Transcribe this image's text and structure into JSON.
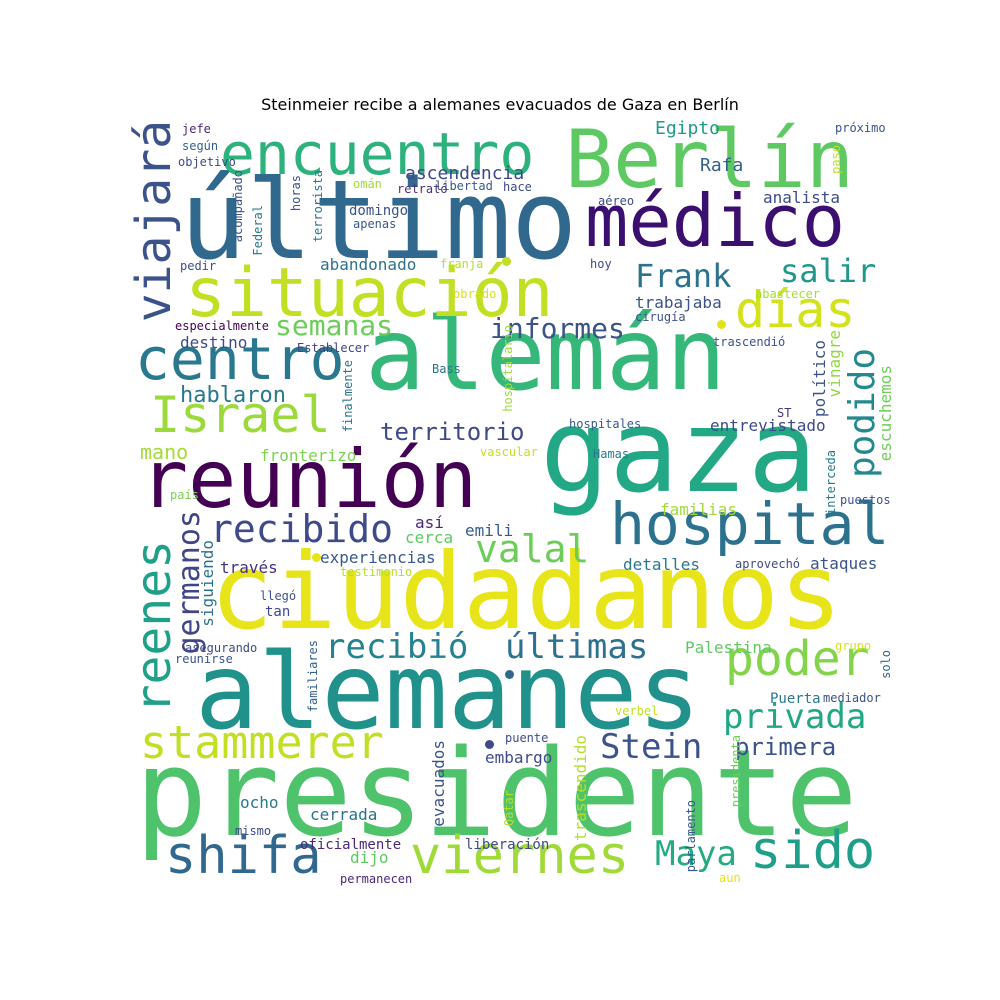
{
  "title": "Steinmeier recibe a alemanes evacuados de Gaza en Berlín",
  "words": [
    {
      "text": "presidente",
      "color": "#4ec36b"
    },
    {
      "text": "alemanes",
      "color": "#21918c"
    },
    {
      "text": "ciudadanos",
      "color": "#e7e419"
    },
    {
      "text": "gaza",
      "color": "#22a884"
    },
    {
      "text": "alemán",
      "color": "#35b779"
    },
    {
      "text": "último",
      "color": "#31688e"
    },
    {
      "text": "reunión",
      "color": "#440154"
    },
    {
      "text": "Berlín",
      "color": "#5ec962"
    },
    {
      "text": "médico",
      "color": "#3b0f70"
    },
    {
      "text": "situación",
      "color": "#c2df23"
    },
    {
      "text": "encuentro",
      "color": "#2db27d"
    },
    {
      "text": "hospital",
      "color": "#2c728e"
    },
    {
      "text": "viernes",
      "color": "#a0da39"
    },
    {
      "text": "shifa",
      "color": "#31688e"
    },
    {
      "text": "sido",
      "color": "#1f9e89"
    },
    {
      "text": "centro",
      "color": "#2a788e"
    },
    {
      "text": "Israel",
      "color": "#9bd93c"
    },
    {
      "text": "stammerer",
      "color": "#c2df23"
    },
    {
      "text": "días",
      "color": "#d2e21b"
    },
    {
      "text": "poder",
      "color": "#84d44b"
    },
    {
      "text": "reenes",
      "color": "#1fa088"
    },
    {
      "text": "viajará",
      "color": "#3b528b"
    },
    {
      "text": "recibido",
      "color": "#3e4a89"
    },
    {
      "text": "valal",
      "color": "#6ccd5a"
    },
    {
      "text": "recibió",
      "color": "#26828e"
    },
    {
      "text": "últimas",
      "color": "#2d718e"
    },
    {
      "text": "privada",
      "color": "#22a785"
    },
    {
      "text": "Stein",
      "color": "#3b528b"
    },
    {
      "text": "Maya",
      "color": "#25ab82"
    },
    {
      "text": "salir",
      "color": "#1f988b"
    },
    {
      "text": "Frank",
      "color": "#2c728e"
    },
    {
      "text": "informes",
      "color": "#3b528b"
    },
    {
      "text": "semanas",
      "color": "#6ccd5a"
    },
    {
      "text": "germanos",
      "color": "#414487"
    },
    {
      "text": "podido",
      "color": "#23898e"
    },
    {
      "text": "territorio",
      "color": "#3e4a89"
    },
    {
      "text": "hablaron",
      "color": "#2a788e"
    },
    {
      "text": "primera",
      "color": "#3b528b"
    },
    {
      "text": "mano",
      "color": "#a5db36"
    },
    {
      "text": "ascendencia",
      "color": "#3e4989"
    },
    {
      "text": "Egipto",
      "color": "#1e9b8a"
    },
    {
      "text": "Rafa",
      "color": "#35608d"
    },
    {
      "text": "analista",
      "color": "#3e4a89"
    },
    {
      "text": "abandonado",
      "color": "#2c728e"
    },
    {
      "text": "trabajaba",
      "color": "#3b528b"
    },
    {
      "text": "experiencias",
      "color": "#38598c"
    },
    {
      "text": "fronterizo",
      "color": "#7ad151"
    },
    {
      "text": "entrevistado",
      "color": "#3e4a89"
    },
    {
      "text": "siguiendo",
      "color": "#2c728e"
    },
    {
      "text": "familias",
      "color": "#a0da39"
    },
    {
      "text": "detalles",
      "color": "#2a788e"
    },
    {
      "text": "ataques",
      "color": "#3b528b"
    },
    {
      "text": "cerca",
      "color": "#5ec962"
    },
    {
      "text": "emili",
      "color": "#38598c"
    },
    {
      "text": "así",
      "color": "#482878"
    },
    {
      "text": "través",
      "color": "#46327e"
    },
    {
      "text": "destino",
      "color": "#3e4a89"
    },
    {
      "text": "especialmente",
      "color": "#440154"
    },
    {
      "text": "Palestina",
      "color": "#5ec962"
    },
    {
      "text": "embargo",
      "color": "#3e4a89"
    },
    {
      "text": "evacuados",
      "color": "#3b528b"
    },
    {
      "text": "trascendido",
      "color": "#b5de2b"
    },
    {
      "text": "cerrada",
      "color": "#2c728e"
    },
    {
      "text": "ocho",
      "color": "#2a788e"
    },
    {
      "text": "dijo",
      "color": "#5ec962"
    },
    {
      "text": "oficialmente",
      "color": "#482878"
    },
    {
      "text": "liberación",
      "color": "#3e4a89"
    },
    {
      "text": "político",
      "color": "#3b528b"
    },
    {
      "text": "escuchemos",
      "color": "#6ece58"
    },
    {
      "text": "vinagre",
      "color": "#93d741"
    },
    {
      "text": "interceda",
      "color": "#2a788e"
    },
    {
      "text": "puestos",
      "color": "#3b528b"
    },
    {
      "text": "aprovechó",
      "color": "#3e4a89"
    },
    {
      "text": "grupo",
      "color": "#d8e219"
    },
    {
      "text": "solo",
      "color": "#31688e"
    },
    {
      "text": "mediador",
      "color": "#3b528b"
    },
    {
      "text": "Puerta",
      "color": "#2a788e"
    },
    {
      "text": "verbel",
      "color": "#c2df23"
    },
    {
      "text": "puente",
      "color": "#3e4a89"
    },
    {
      "text": "Qatar",
      "color": "#b5de2b"
    },
    {
      "text": "parlamento",
      "color": "#38598c"
    },
    {
      "text": "presidenta",
      "color": "#6ece58"
    },
    {
      "text": "aun",
      "color": "#e2e418"
    },
    {
      "text": "permanecen",
      "color": "#482878"
    },
    {
      "text": "mismo",
      "color": "#3e4a89"
    },
    {
      "text": "familiares",
      "color": "#35608d"
    },
    {
      "text": "reunirse",
      "color": "#3b528b"
    },
    {
      "text": "asegurando",
      "color": "#3e4a89"
    },
    {
      "text": "llegó",
      "color": "#3b528b"
    },
    {
      "text": "tan",
      "color": "#3e4a89"
    },
    {
      "text": "testimonio",
      "color": "#b5de2b"
    },
    {
      "text": "vascular",
      "color": "#c2df23"
    },
    {
      "text": "Hamas",
      "color": "#2a788e"
    },
    {
      "text": "hospitales",
      "color": "#38598c"
    },
    {
      "text": "hospitalario",
      "color": "#a0da39"
    },
    {
      "text": "finalmente",
      "color": "#2c728e"
    },
    {
      "text": "Bass",
      "color": "#2c728e"
    },
    {
      "text": "Establecer",
      "color": "#414487"
    },
    {
      "text": "país",
      "color": "#7ad151"
    },
    {
      "text": "trascendió",
      "color": "#3b528b"
    },
    {
      "text": "cirugía",
      "color": "#3b528b"
    },
    {
      "text": "abastecer",
      "color": "#a5db36"
    },
    {
      "text": "obrado",
      "color": "#d8e219"
    },
    {
      "text": "franja",
      "color": "#b5de2b"
    },
    {
      "text": "hoy",
      "color": "#3e4a89"
    },
    {
      "text": "pedir",
      "color": "#3b528b"
    },
    {
      "text": "aéreo",
      "color": "#3e4a89"
    },
    {
      "text": "apenas",
      "color": "#38598c"
    },
    {
      "text": "domingo",
      "color": "#3b528b"
    },
    {
      "text": "hace",
      "color": "#3e4a89"
    },
    {
      "text": "libertad",
      "color": "#38598c"
    },
    {
      "text": "retrató",
      "color": "#46327e"
    },
    {
      "text": "omán",
      "color": "#a0da39"
    },
    {
      "text": "horas",
      "color": "#3b528b"
    },
    {
      "text": "terrorista",
      "color": "#2a788e"
    },
    {
      "text": "Federal",
      "color": "#2a788e"
    },
    {
      "text": "acompañado",
      "color": "#3b528b"
    },
    {
      "text": "objetivo",
      "color": "#3e4a89"
    },
    {
      "text": "según",
      "color": "#35608d"
    },
    {
      "text": "jefe",
      "color": "#482878"
    },
    {
      "text": "próximo",
      "color": "#3b528b"
    },
    {
      "text": "paso",
      "color": "#c2df23"
    },
    {
      "text": "ST",
      "color": "#46327e"
    }
  ]
}
